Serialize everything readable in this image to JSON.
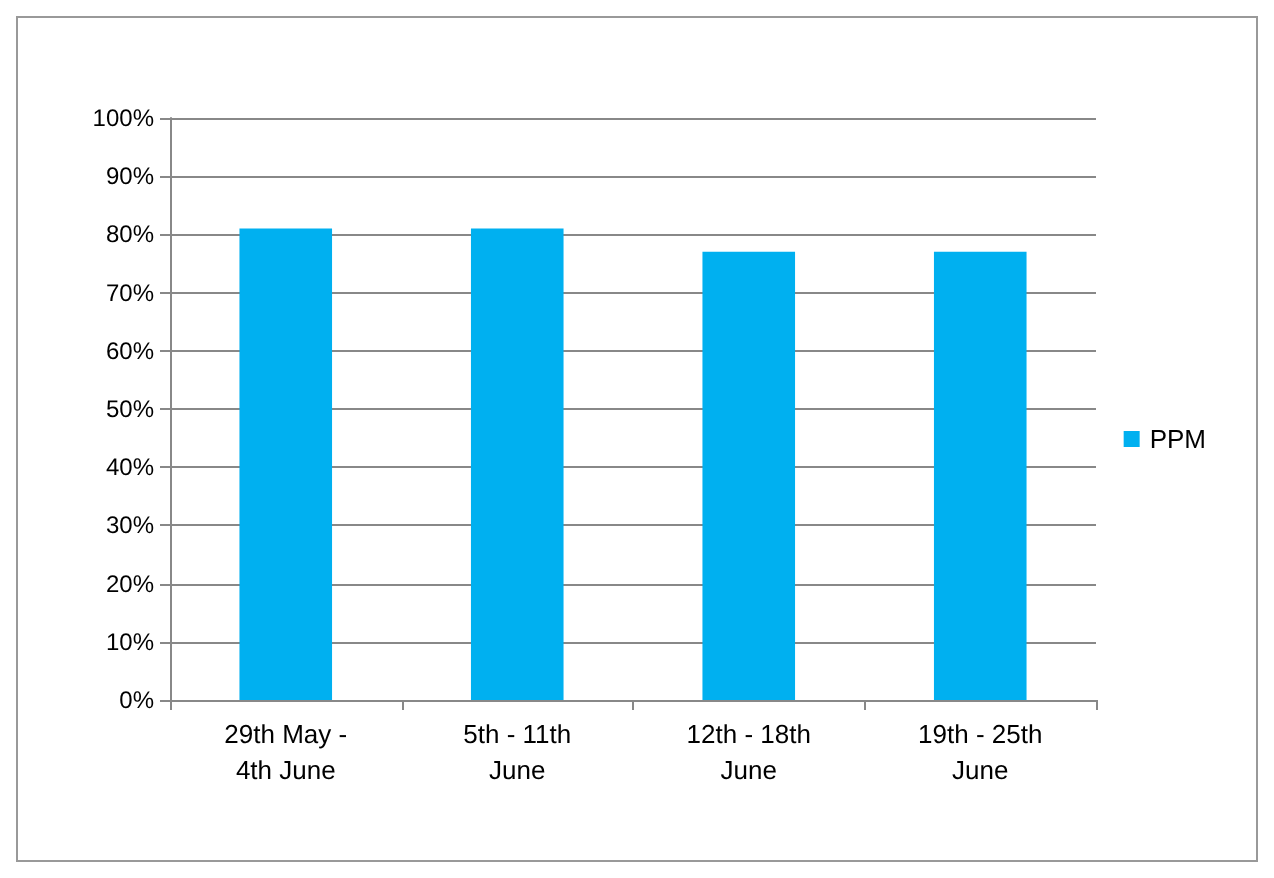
{
  "chart_data": {
    "type": "bar",
    "categories": [
      "29th May -\n4th June",
      "5th - 11th\nJune",
      "12th - 18th\nJune",
      "19th - 25th\nJune"
    ],
    "series": [
      {
        "name": "PPM",
        "color": "#00b0f0",
        "values": [
          81,
          81,
          77,
          77
        ]
      }
    ],
    "ylim": [
      0,
      100
    ],
    "yticks": [
      {
        "value": 0,
        "label": "0%"
      },
      {
        "value": 10,
        "label": "10%"
      },
      {
        "value": 20,
        "label": "20%"
      },
      {
        "value": 30,
        "label": "30%"
      },
      {
        "value": 40,
        "label": "40%"
      },
      {
        "value": 50,
        "label": "50%"
      },
      {
        "value": 60,
        "label": "60%"
      },
      {
        "value": 70,
        "label": "70%"
      },
      {
        "value": 80,
        "label": "80%"
      },
      {
        "value": 90,
        "label": "90%"
      },
      {
        "value": 100,
        "label": "100%"
      }
    ],
    "grid": "y",
    "legend": "right"
  }
}
